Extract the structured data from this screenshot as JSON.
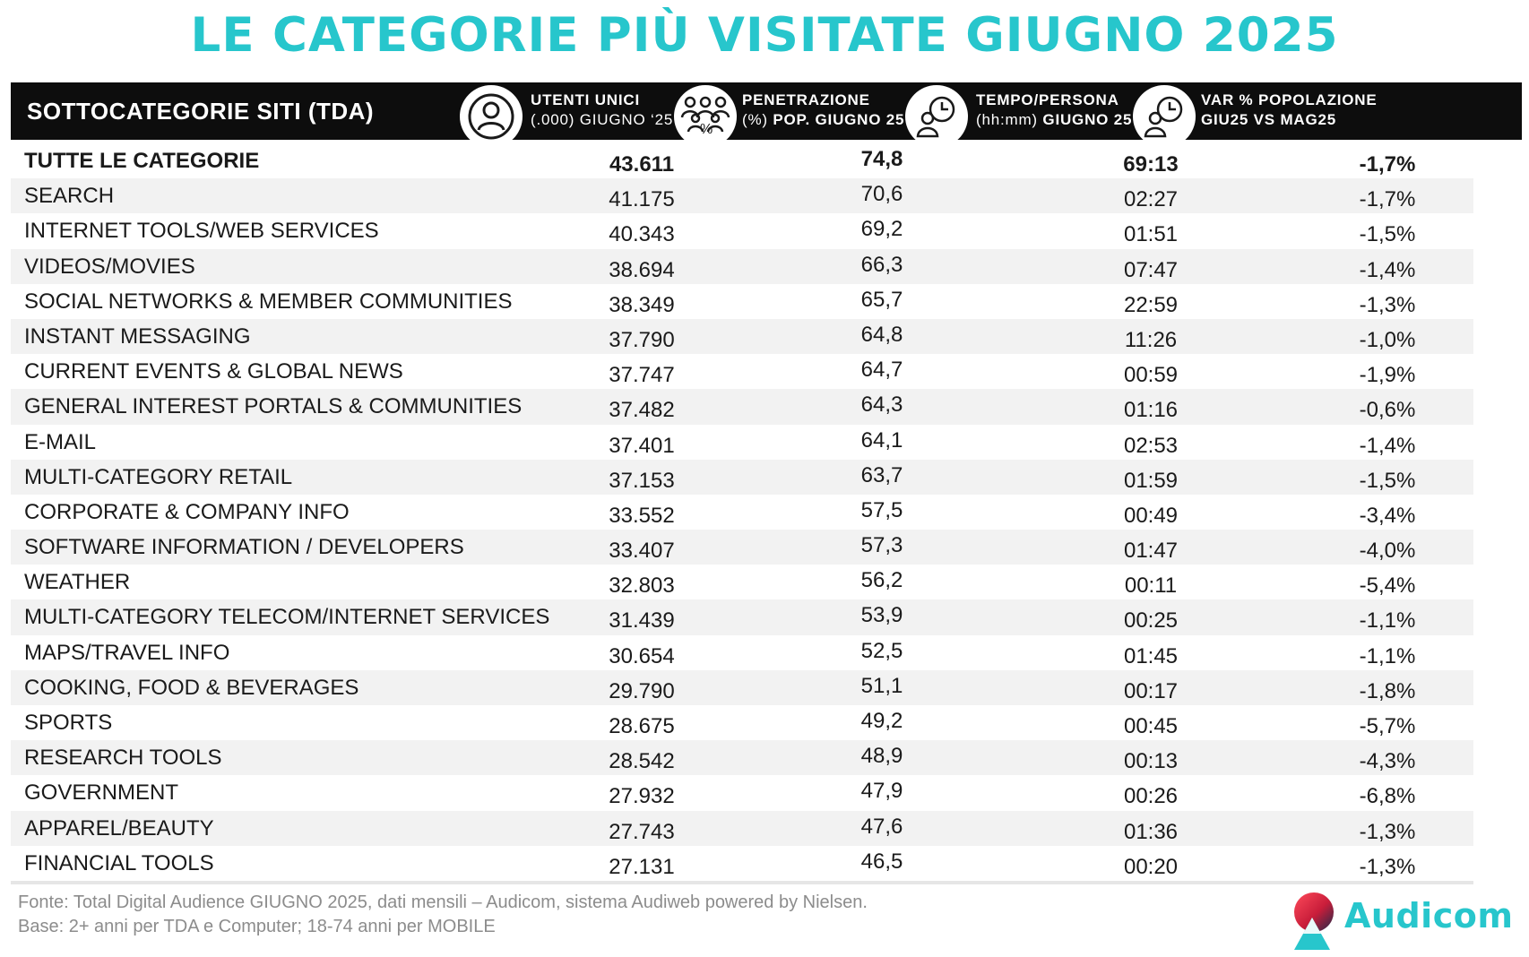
{
  "title": "LE CATEGORIE PIÙ VISITATE GIUGNO 2025",
  "header": {
    "first": "SOTTOCATEGORIE SITI  (TDA)",
    "users": {
      "l1": "UTENTI UNICI",
      "l2": "(.000) GIUGNO ‘25"
    },
    "pen": {
      "l1": "PENETRAZIONE",
      "l2a": "(%)",
      "l2b": "POP. GIUGNO 25",
      "pct": "%"
    },
    "time": {
      "l1": "TEMPO/PERSONA",
      "l2a": "(hh:mm)",
      "l2b": "GIUGNO 25"
    },
    "var": {
      "l1": "VAR % POPOLAZIONE",
      "l2": "GIU25 VS MAG25"
    }
  },
  "chart_data": {
    "type": "table",
    "title": "LE CATEGORIE PIÙ VISITATE GIUGNO 2025",
    "columns": [
      "SOTTOCATEGORIE SITI  (TDA)",
      "UTENTI UNICI (.000) GIUGNO ‘25",
      "PENETRAZIONE (%) POP. GIUGNO 25",
      "TEMPO/PERSONA (hh:mm) GIUGNO 25",
      "VAR % POPOLAZIONE GIU25 VS MAG25"
    ],
    "rows": [
      {
        "name": "TUTTE LE CATEGORIE",
        "users": "43.611",
        "pen": "74,8",
        "time": "69:13",
        "var": "-1,7%"
      },
      {
        "name": "SEARCH",
        "users": "41.175",
        "pen": "70,6",
        "time": "02:27",
        "var": "-1,7%"
      },
      {
        "name": "INTERNET TOOLS/WEB SERVICES",
        "users": "40.343",
        "pen": "69,2",
        "time": "01:51",
        "var": "-1,5%"
      },
      {
        "name": "VIDEOS/MOVIES",
        "users": "38.694",
        "pen": "66,3",
        "time": "07:47",
        "var": "-1,4%"
      },
      {
        "name": "SOCIAL NETWORKS & MEMBER COMMUNITIES",
        "users": "38.349",
        "pen": "65,7",
        "time": "22:59",
        "var": "-1,3%"
      },
      {
        "name": "INSTANT MESSAGING",
        "users": "37.790",
        "pen": "64,8",
        "time": "11:26",
        "var": "-1,0%"
      },
      {
        "name": "CURRENT EVENTS & GLOBAL NEWS",
        "users": "37.747",
        "pen": "64,7",
        "time": "00:59",
        "var": "-1,9%"
      },
      {
        "name": "GENERAL INTEREST PORTALS & COMMUNITIES",
        "users": "37.482",
        "pen": "64,3",
        "time": "01:16",
        "var": "-0,6%"
      },
      {
        "name": "E-MAIL",
        "users": "37.401",
        "pen": "64,1",
        "time": "02:53",
        "var": "-1,4%"
      },
      {
        "name": "MULTI-CATEGORY RETAIL",
        "users": "37.153",
        "pen": "63,7",
        "time": "01:59",
        "var": "-1,5%"
      },
      {
        "name": "CORPORATE & COMPANY INFO",
        "users": "33.552",
        "pen": "57,5",
        "time": "00:49",
        "var": "-3,4%"
      },
      {
        "name": "SOFTWARE INFORMATION / DEVELOPERS",
        "users": "33.407",
        "pen": "57,3",
        "time": "01:47",
        "var": "-4,0%"
      },
      {
        "name": "WEATHER",
        "users": "32.803",
        "pen": "56,2",
        "time": "00:11",
        "var": "-5,4%"
      },
      {
        "name": "MULTI-CATEGORY TELECOM/INTERNET SERVICES",
        "users": "31.439",
        "pen": "53,9",
        "time": "00:25",
        "var": "-1,1%"
      },
      {
        "name": "MAPS/TRAVEL INFO",
        "users": "30.654",
        "pen": "52,5",
        "time": "01:45",
        "var": "-1,1%"
      },
      {
        "name": "COOKING, FOOD & BEVERAGES",
        "users": "29.790",
        "pen": "51,1",
        "time": "00:17",
        "var": "-1,8%"
      },
      {
        "name": "SPORTS",
        "users": "28.675",
        "pen": "49,2",
        "time": "00:45",
        "var": "-5,7%"
      },
      {
        "name": "RESEARCH TOOLS",
        "users": "28.542",
        "pen": "48,9",
        "time": "00:13",
        "var": "-4,3%"
      },
      {
        "name": "GOVERNMENT",
        "users": "27.932",
        "pen": "47,9",
        "time": "00:26",
        "var": "-6,8%"
      },
      {
        "name": "APPAREL/BEAUTY",
        "users": "27.743",
        "pen": "47,6",
        "time": "01:36",
        "var": "-1,3%"
      },
      {
        "name": "FINANCIAL TOOLS",
        "users": "27.131",
        "pen": "46,5",
        "time": "00:20",
        "var": "-1,3%"
      }
    ]
  },
  "footer": {
    "line1": "Fonte: Total Digital Audience GIUGNO 2025, dati mensili – Audicom, sistema Audiweb powered by Nielsen.",
    "line2": "Base: 2+ anni per TDA e Computer; 18-74 anni per MOBILE"
  },
  "logo": {
    "text": "Audicom"
  },
  "icons": {
    "users": "person-icon",
    "pen": "group-icon",
    "time": "person-clock-icon",
    "var": "person-clock-icon"
  },
  "colors": {
    "accent": "#27c6cc",
    "header_bg": "#0d0d0d",
    "row_alt": "#f2f2f2",
    "logo_red": "#e8304a"
  }
}
